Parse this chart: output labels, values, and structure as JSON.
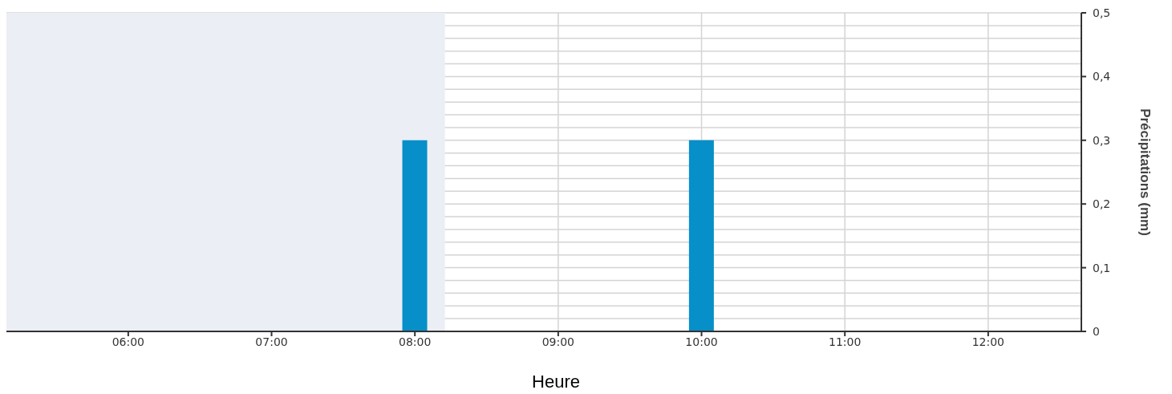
{
  "chart_data": {
    "type": "bar",
    "xlabel": "Heure",
    "ylabel": "Précipitations (mm)",
    "x": [
      8,
      10
    ],
    "series": [
      {
        "color": "#068fc9",
        "values": [
          0.3,
          0.3
        ]
      }
    ],
    "xlim": [
      5.15,
      12.65
    ],
    "xticks": [
      {
        "value": 6,
        "label": "06:00"
      },
      {
        "value": 7,
        "label": "07:00"
      },
      {
        "value": 8,
        "label": "08:00"
      },
      {
        "value": 9,
        "label": "09:00"
      },
      {
        "value": 10,
        "label": "10:00"
      },
      {
        "value": 11,
        "label": "11:00"
      },
      {
        "value": 12,
        "label": "12:00"
      }
    ],
    "ylim": [
      0,
      0.5
    ],
    "yticks": [
      0,
      {
        "value": 0.02,
        "label": null
      },
      {
        "value": 0.04,
        "label": null
      },
      {
        "value": 0.06,
        "label": null
      },
      {
        "value": 0.08,
        "label": null
      },
      {
        "value": 0.1,
        "label": "0,1"
      },
      {
        "value": 0.12,
        "label": null
      },
      {
        "value": 0.14,
        "label": null
      },
      {
        "value": 0.16,
        "label": null
      },
      {
        "value": 0.18,
        "label": null
      },
      {
        "value": 0.2,
        "label": "0,2"
      },
      {
        "value": 0.22,
        "label": null
      },
      {
        "value": 0.24,
        "label": null
      },
      {
        "value": 0.26,
        "label": null
      },
      {
        "value": 0.28,
        "label": null
      },
      {
        "value": 0.3,
        "label": "0,3"
      },
      {
        "value": 0.32,
        "label": null
      },
      {
        "value": 0.34,
        "label": null
      },
      {
        "value": 0.36,
        "label": null
      },
      {
        "value": 0.38,
        "label": null
      },
      {
        "value": 0.4,
        "label": "0,4"
      },
      {
        "value": 0.42,
        "label": null
      },
      {
        "value": 0.44,
        "label": null
      },
      {
        "value": 0.46,
        "label": null
      },
      {
        "value": 0.48,
        "label": null
      },
      {
        "value": 0.5,
        "label": "0,5"
      }
    ],
    "bands": [
      {
        "axis": "x",
        "from": 5.15,
        "to": 8.21,
        "color": "#eceef5"
      }
    ],
    "grid": true
  }
}
